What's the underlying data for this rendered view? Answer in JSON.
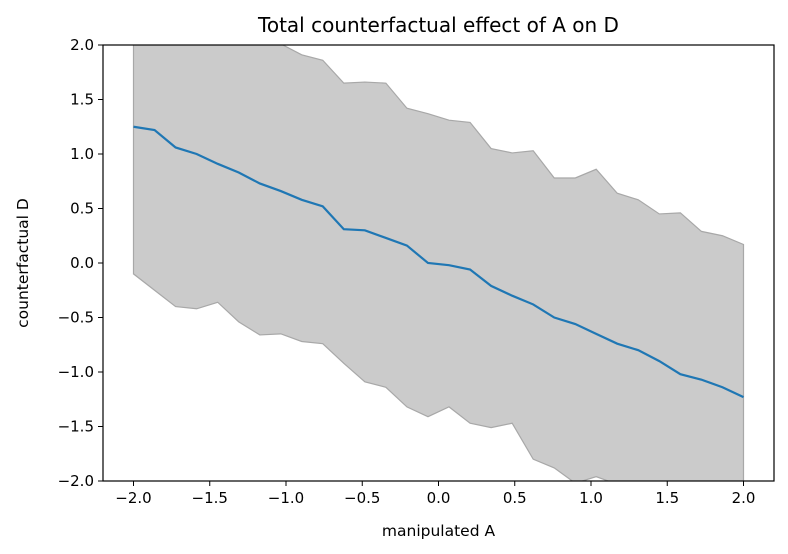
{
  "chart_data": {
    "type": "line",
    "title": "Total counterfactual effect of A on D",
    "xlabel": "manipulated A",
    "ylabel": "counterfactual D",
    "xlim": [
      -2.2,
      2.2
    ],
    "ylim": [
      -2.0,
      2.0
    ],
    "xticks": [
      -2.0,
      -1.5,
      -1.0,
      -0.5,
      0.0,
      0.5,
      1.0,
      1.5,
      2.0
    ],
    "xtick_labels": [
      "−2.0",
      "−1.5",
      "−1.0",
      "−0.5",
      "0.0",
      "0.5",
      "1.0",
      "1.5",
      "2.0"
    ],
    "yticks": [
      -2.0,
      -1.5,
      -1.0,
      -0.5,
      0.0,
      0.5,
      1.0,
      1.5,
      2.0
    ],
    "ytick_labels": [
      "−2.0",
      "−1.5",
      "−1.0",
      "−0.5",
      "0.0",
      "0.5",
      "1.0",
      "1.5",
      "2.0"
    ],
    "grid": false,
    "x": [
      -2.0,
      -1.862,
      -1.724,
      -1.586,
      -1.448,
      -1.31,
      -1.172,
      -1.034,
      -0.897,
      -0.759,
      -0.621,
      -0.483,
      -0.345,
      -0.207,
      -0.069,
      0.069,
      0.207,
      0.345,
      0.483,
      0.621,
      0.759,
      0.897,
      1.034,
      1.172,
      1.31,
      1.448,
      1.586,
      1.724,
      1.862,
      2.0
    ],
    "series": [
      {
        "type": "line",
        "color": "#1f77b4",
        "values": [
          1.25,
          1.22,
          1.06,
          1.0,
          0.91,
          0.83,
          0.73,
          0.66,
          0.58,
          0.52,
          0.31,
          0.3,
          0.23,
          0.16,
          0.0,
          -0.02,
          -0.06,
          -0.21,
          -0.3,
          -0.38,
          -0.5,
          -0.56,
          -0.65,
          -0.74,
          -0.8,
          -0.9,
          -1.02,
          -1.07,
          -1.14,
          -1.23
        ]
      },
      {
        "type": "band",
        "color": "#cbcbcb",
        "edge_color": "#a8a8a8",
        "upper": [
          2.55,
          2.45,
          2.35,
          2.25,
          2.18,
          2.1,
          2.05,
          2.01,
          1.91,
          1.86,
          1.65,
          1.66,
          1.65,
          1.42,
          1.37,
          1.31,
          1.29,
          1.05,
          1.01,
          1.03,
          0.78,
          0.78,
          0.86,
          0.64,
          0.58,
          0.45,
          0.46,
          0.29,
          0.25,
          0.17
        ],
        "lower": [
          -0.1,
          -0.25,
          -0.4,
          -0.42,
          -0.36,
          -0.54,
          -0.66,
          -0.65,
          -0.72,
          -0.74,
          -0.92,
          -1.09,
          -1.14,
          -1.32,
          -1.41,
          -1.32,
          -1.47,
          -1.51,
          -1.47,
          -1.8,
          -1.88,
          -2.02,
          -1.96,
          -2.03,
          -2.08,
          -2.15,
          -2.2,
          -2.25,
          -2.3,
          -2.35
        ]
      }
    ]
  }
}
